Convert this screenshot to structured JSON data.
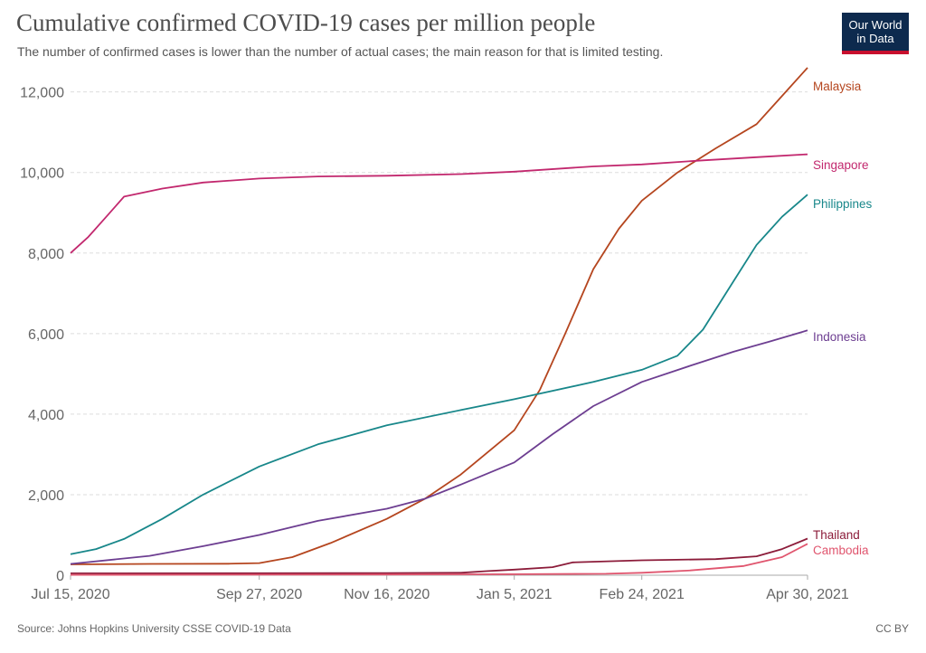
{
  "header": {
    "title": "Cumulative confirmed COVID-19 cases per million people",
    "subtitle": "The number of confirmed cases is lower than the number of actual cases; the main reason for that is limited testing."
  },
  "logo": {
    "line1": "Our World",
    "line2": "in Data"
  },
  "footer": {
    "source": "Source: Johns Hopkins University CSSE COVID-19 Data",
    "license": "CC BY"
  },
  "colors": {
    "grid": "#dddddd",
    "axis_text": "#666666"
  },
  "chart_data": {
    "type": "line",
    "title": "Cumulative confirmed COVID-19 cases per million people",
    "x_ticks": [
      "Jul 15, 2020",
      "Sep 27, 2020",
      "Nov 16, 2020",
      "Jan 5, 2021",
      "Feb 24, 2021",
      "Apr 30, 2021"
    ],
    "x_range": [
      "2020-07-15",
      "2021-04-30"
    ],
    "y_ticks": [
      0,
      2000,
      4000,
      6000,
      8000,
      10000,
      12000
    ],
    "y_tick_labels": [
      "0",
      "2,000",
      "4,000",
      "6,000",
      "8,000",
      "10,000",
      "12,000"
    ],
    "ylim": [
      0,
      12800
    ],
    "grid": "horizontal dashed",
    "series": [
      {
        "name": "Malaysia",
        "color": "#b5461f",
        "points": [
          [
            "2020-07-15",
            270
          ],
          [
            "2020-08-15",
            280
          ],
          [
            "2020-09-15",
            285
          ],
          [
            "2020-09-27",
            300
          ],
          [
            "2020-10-10",
            450
          ],
          [
            "2020-10-25",
            800
          ],
          [
            "2020-11-16",
            1400
          ],
          [
            "2020-12-01",
            1900
          ],
          [
            "2020-12-15",
            2500
          ],
          [
            "2021-01-05",
            3600
          ],
          [
            "2021-01-15",
            4600
          ],
          [
            "2021-01-25",
            6000
          ],
          [
            "2021-02-05",
            7600
          ],
          [
            "2021-02-15",
            8600
          ],
          [
            "2021-02-24",
            9300
          ],
          [
            "2021-03-10",
            10000
          ],
          [
            "2021-03-25",
            10600
          ],
          [
            "2021-04-10",
            11200
          ],
          [
            "2021-04-20",
            11900
          ],
          [
            "2021-04-30",
            12600
          ]
        ]
      },
      {
        "name": "Singapore",
        "color": "#c2286e",
        "points": [
          [
            "2020-07-15",
            8000
          ],
          [
            "2020-07-22",
            8400
          ],
          [
            "2020-07-29",
            8900
          ],
          [
            "2020-08-05",
            9400
          ],
          [
            "2020-08-20",
            9600
          ],
          [
            "2020-09-05",
            9750
          ],
          [
            "2020-09-27",
            9850
          ],
          [
            "2020-10-20",
            9900
          ],
          [
            "2020-11-16",
            9920
          ],
          [
            "2020-12-15",
            9960
          ],
          [
            "2021-01-05",
            10020
          ],
          [
            "2021-02-05",
            10150
          ],
          [
            "2021-02-24",
            10200
          ],
          [
            "2021-03-20",
            10300
          ],
          [
            "2021-04-10",
            10380
          ],
          [
            "2021-04-30",
            10450
          ]
        ]
      },
      {
        "name": "Philippines",
        "color": "#18878a",
        "points": [
          [
            "2020-07-15",
            520
          ],
          [
            "2020-07-25",
            650
          ],
          [
            "2020-08-05",
            900
          ],
          [
            "2020-08-20",
            1400
          ],
          [
            "2020-09-05",
            2000
          ],
          [
            "2020-09-27",
            2700
          ],
          [
            "2020-10-20",
            3250
          ],
          [
            "2020-11-16",
            3720
          ],
          [
            "2020-12-15",
            4100
          ],
          [
            "2021-01-05",
            4370
          ],
          [
            "2021-02-05",
            4800
          ],
          [
            "2021-02-24",
            5100
          ],
          [
            "2021-03-10",
            5450
          ],
          [
            "2021-03-20",
            6100
          ],
          [
            "2021-04-01",
            7300
          ],
          [
            "2021-04-10",
            8200
          ],
          [
            "2021-04-20",
            8900
          ],
          [
            "2021-04-30",
            9450
          ]
        ]
      },
      {
        "name": "Indonesia",
        "color": "#6d3e91",
        "points": [
          [
            "2020-07-15",
            280
          ],
          [
            "2020-08-15",
            480
          ],
          [
            "2020-09-05",
            720
          ],
          [
            "2020-09-27",
            1000
          ],
          [
            "2020-10-20",
            1350
          ],
          [
            "2020-11-16",
            1650
          ],
          [
            "2020-12-01",
            1900
          ],
          [
            "2020-12-15",
            2250
          ],
          [
            "2021-01-05",
            2800
          ],
          [
            "2021-01-20",
            3500
          ],
          [
            "2021-02-05",
            4200
          ],
          [
            "2021-02-24",
            4800
          ],
          [
            "2021-03-15",
            5200
          ],
          [
            "2021-04-01",
            5550
          ],
          [
            "2021-04-15",
            5800
          ],
          [
            "2021-04-30",
            6080
          ]
        ]
      },
      {
        "name": "Thailand",
        "color": "#8c1c3a",
        "points": [
          [
            "2020-07-15",
            48
          ],
          [
            "2020-09-27",
            50
          ],
          [
            "2020-11-16",
            55
          ],
          [
            "2020-12-15",
            60
          ],
          [
            "2020-12-25",
            100
          ],
          [
            "2021-01-05",
            140
          ],
          [
            "2021-01-20",
            200
          ],
          [
            "2021-01-28",
            320
          ],
          [
            "2021-02-24",
            370
          ],
          [
            "2021-03-25",
            400
          ],
          [
            "2021-04-10",
            470
          ],
          [
            "2021-04-20",
            650
          ],
          [
            "2021-04-30",
            910
          ]
        ]
      },
      {
        "name": "Cambodia",
        "color": "#e0556e",
        "points": [
          [
            "2020-07-15",
            8
          ],
          [
            "2020-11-16",
            18
          ],
          [
            "2021-01-05",
            25
          ],
          [
            "2021-02-10",
            35
          ],
          [
            "2021-02-24",
            60
          ],
          [
            "2021-03-15",
            120
          ],
          [
            "2021-04-05",
            230
          ],
          [
            "2021-04-20",
            450
          ],
          [
            "2021-04-30",
            780
          ]
        ]
      }
    ]
  }
}
